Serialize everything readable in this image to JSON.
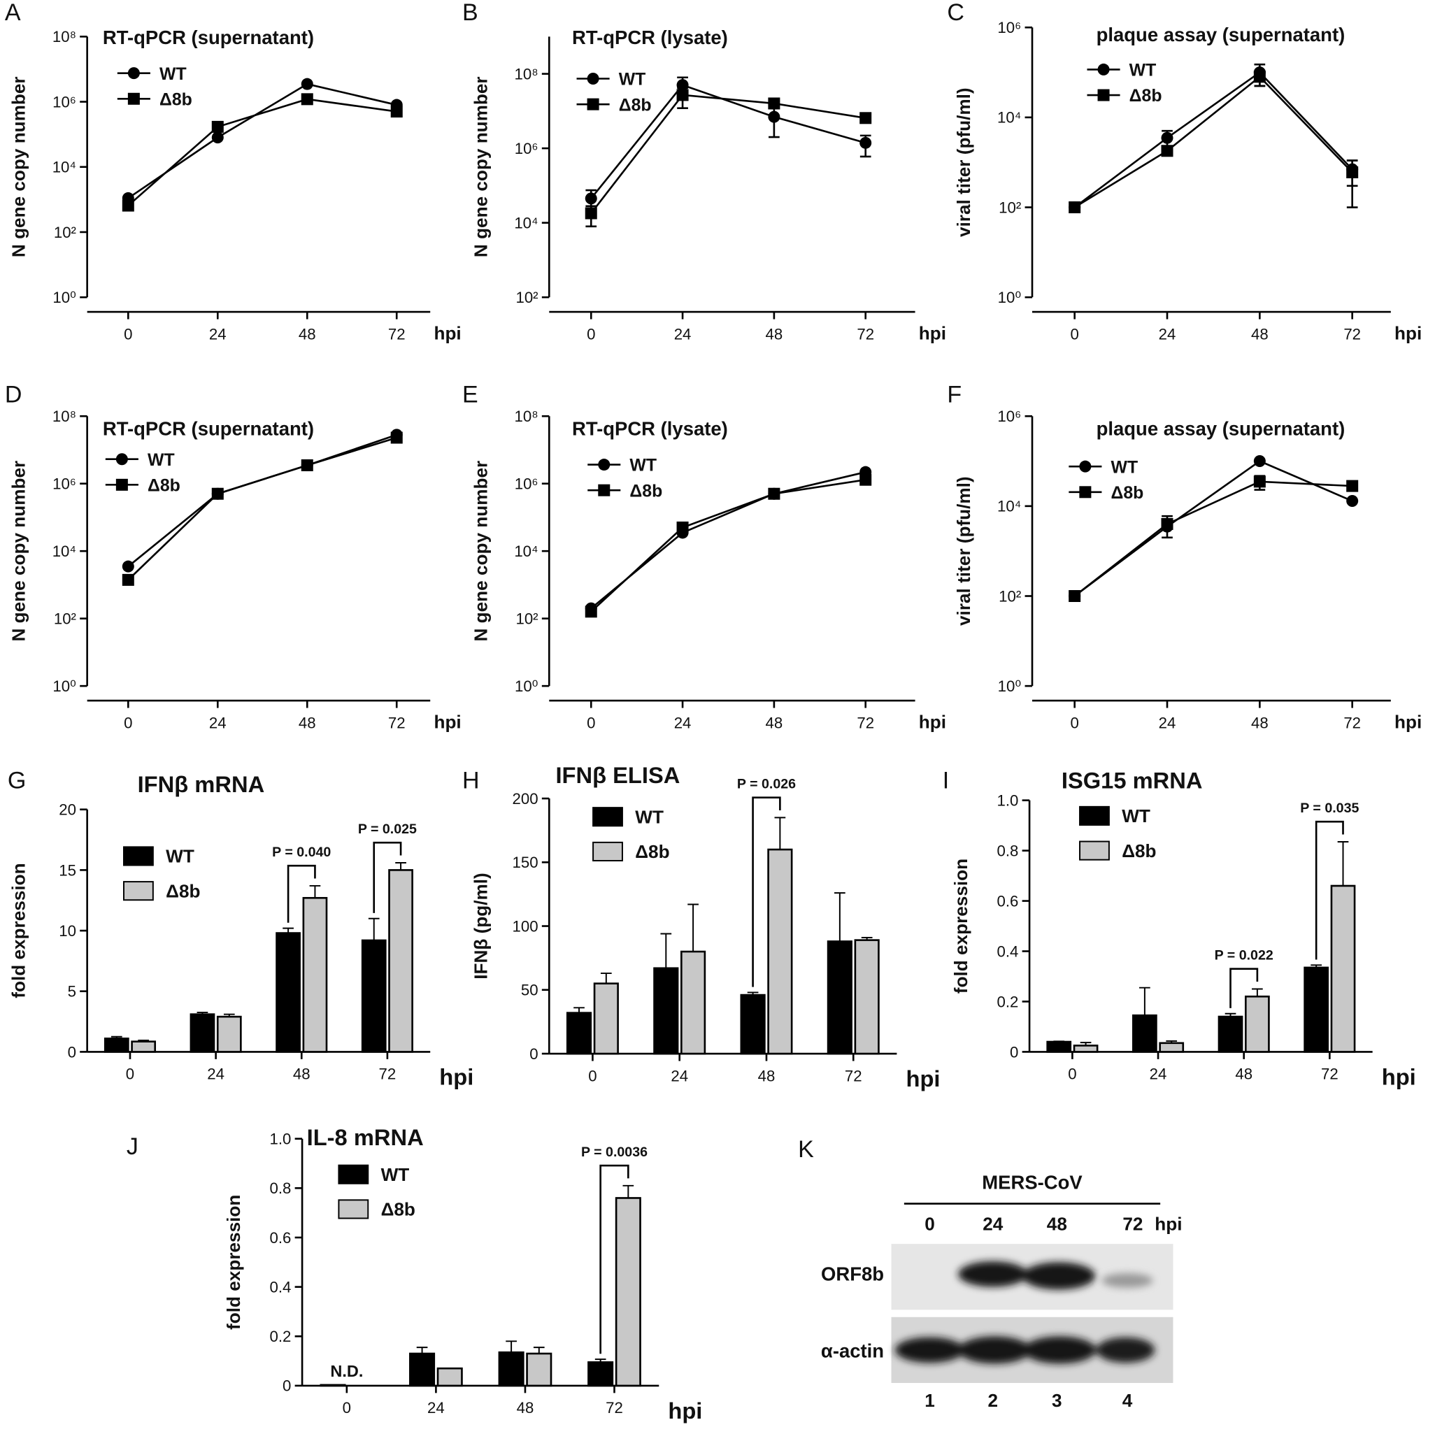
{
  "chart_data": [
    {
      "panel": "A",
      "type": "line",
      "title": "RT-qPCR (supernatant)",
      "xlabel": "hpi",
      "ylabel": "N gene copy number",
      "log_y": true,
      "x": [
        0,
        24,
        48,
        72
      ],
      "xlim": [
        -11,
        81
      ],
      "xticks": [
        0,
        24,
        48,
        72
      ],
      "ylim": [
        1,
        100000000
      ],
      "yticks": [
        {
          "value": 1,
          "label": "10⁰"
        },
        {
          "value": 100,
          "label": "10²"
        },
        {
          "value": 10000,
          "label": "10⁴"
        },
        {
          "value": 1000000,
          "label": "10⁶"
        },
        {
          "value": 100000000,
          "label": "10⁸"
        }
      ],
      "series": [
        {
          "name": "WT",
          "color": "#000000",
          "marker": "circle",
          "values": [
            1100,
            80000,
            3500000,
            800000
          ]
        },
        {
          "name": "Δ8b",
          "color": "#000000",
          "marker": "square",
          "values": [
            650,
            170000,
            1200000,
            500000
          ]
        }
      ]
    },
    {
      "panel": "B",
      "type": "line",
      "title": "RT-qPCR (lysate)",
      "xlabel": "hpi",
      "ylabel": "N gene copy number",
      "log_y": true,
      "x": [
        0,
        24,
        48,
        72
      ],
      "xlim": [
        -11,
        85
      ],
      "xticks": [
        0,
        24,
        48,
        72
      ],
      "ylim": [
        100,
        1000000000
      ],
      "yticks": [
        {
          "value": 100,
          "label": "10²"
        },
        {
          "value": 10000,
          "label": "10⁴"
        },
        {
          "value": 1000000,
          "label": "10⁶"
        },
        {
          "value": 100000000,
          "label": "10⁸"
        }
      ],
      "series": [
        {
          "name": "WT",
          "color": "#000000",
          "marker": "circle",
          "values": [
            45000,
            50000000,
            7000000,
            1400000
          ],
          "errors": [
            30000,
            30000000,
            5000000,
            800000
          ]
        },
        {
          "name": "Δ8b",
          "color": "#000000",
          "marker": "square",
          "values": [
            18000,
            27000000,
            16000000,
            6500000
          ],
          "errors": [
            10000,
            15000000,
            null,
            null
          ]
        }
      ]
    },
    {
      "panel": "C",
      "type": "line",
      "title": "plaque assay (supernatant)",
      "xlabel": "hpi",
      "ylabel": "viral titer (pfu/ml)",
      "log_y": true,
      "x": [
        0,
        24,
        48,
        72
      ],
      "xlim": [
        -11,
        82
      ],
      "xticks": [
        0,
        24,
        48,
        72
      ],
      "ylim": [
        1,
        1000000
      ],
      "yticks": [
        {
          "value": 1,
          "label": "10⁰"
        },
        {
          "value": 100,
          "label": "10²"
        },
        {
          "value": 10000,
          "label": "10⁴"
        },
        {
          "value": 1000000,
          "label": "10⁶"
        }
      ],
      "series": [
        {
          "name": "WT",
          "color": "#000000",
          "marker": "circle",
          "values": [
            100,
            3500,
            100000,
            700
          ],
          "errors": [
            null,
            1500,
            50000,
            400
          ]
        },
        {
          "name": "Δ8b",
          "color": "#000000",
          "marker": "square",
          "values": [
            100,
            1800,
            80000,
            600
          ],
          "errors": [
            null,
            null,
            30000,
            500
          ]
        }
      ]
    },
    {
      "panel": "D",
      "type": "line",
      "title": "RT-qPCR (supernatant)",
      "xlabel": "hpi",
      "ylabel": "N gene copy number",
      "log_y": true,
      "x": [
        0,
        24,
        48,
        72
      ],
      "xlim": [
        -11,
        81
      ],
      "xticks": [
        0,
        24,
        48,
        72
      ],
      "ylim": [
        1,
        100000000
      ],
      "yticks": [
        {
          "value": 1,
          "label": "10⁰"
        },
        {
          "value": 100,
          "label": "10²"
        },
        {
          "value": 10000,
          "label": "10⁴"
        },
        {
          "value": 1000000,
          "label": "10⁶"
        },
        {
          "value": 100000000,
          "label": "10⁸"
        }
      ],
      "series": [
        {
          "name": "WT",
          "color": "#000000",
          "marker": "circle",
          "values": [
            3500,
            500000,
            3500000,
            28000000
          ]
        },
        {
          "name": "Δ8b",
          "color": "#000000",
          "marker": "square",
          "values": [
            1400,
            500000,
            3500000,
            23000000
          ]
        }
      ]
    },
    {
      "panel": "E",
      "type": "line",
      "title": "RT-qPCR (lysate)",
      "xlabel": "hpi",
      "ylabel": "N gene copy number",
      "log_y": true,
      "x": [
        0,
        24,
        48,
        72
      ],
      "xlim": [
        -11,
        85
      ],
      "xticks": [
        0,
        24,
        48,
        72
      ],
      "ylim": [
        1,
        100000000
      ],
      "yticks": [
        {
          "value": 1,
          "label": "10⁰"
        },
        {
          "value": 100,
          "label": "10²"
        },
        {
          "value": 10000,
          "label": "10⁴"
        },
        {
          "value": 1000000,
          "label": "10⁶"
        },
        {
          "value": 100000000,
          "label": "10⁸"
        }
      ],
      "series": [
        {
          "name": "WT",
          "color": "#000000",
          "marker": "circle",
          "values": [
            200,
            35000,
            500000,
            2200000
          ]
        },
        {
          "name": "Δ8b",
          "color": "#000000",
          "marker": "square",
          "values": [
            160,
            50000,
            500000,
            1300000
          ]
        }
      ]
    },
    {
      "panel": "F",
      "type": "line",
      "title": "plaque assay (supernatant)",
      "xlabel": "hpi",
      "ylabel": "viral titer (pfu/ml)",
      "log_y": true,
      "x": [
        0,
        24,
        48,
        72
      ],
      "xlim": [
        -11,
        82
      ],
      "xticks": [
        0,
        24,
        48,
        72
      ],
      "ylim": [
        1,
        1000000
      ],
      "yticks": [
        {
          "value": 1,
          "label": "10⁰"
        },
        {
          "value": 100,
          "label": "10²"
        },
        {
          "value": 10000,
          "label": "10⁴"
        },
        {
          "value": 1000000,
          "label": "10⁶"
        }
      ],
      "series": [
        {
          "name": "WT",
          "color": "#000000",
          "marker": "circle",
          "values": [
            100,
            3500,
            100000,
            13000
          ]
        },
        {
          "name": "Δ8b",
          "color": "#000000",
          "marker": "square",
          "values": [
            100,
            4000,
            35000,
            28000
          ],
          "errors": [
            null,
            2000,
            12000,
            null
          ]
        }
      ]
    },
    {
      "panel": "G",
      "type": "bar",
      "title": "IFNβ mRNA",
      "xlabel": "hpi",
      "ylabel": "fold expression",
      "categories": [
        "0",
        "24",
        "48",
        "72"
      ],
      "ylim": [
        0,
        20
      ],
      "yticks": [
        0,
        5,
        10,
        15,
        20
      ],
      "series": [
        {
          "name": "WT",
          "color": "#000000",
          "values": [
            1.1,
            3.1,
            9.8,
            9.2
          ],
          "errors": [
            0.15,
            0.15,
            0.4,
            1.8
          ]
        },
        {
          "name": "Δ8b",
          "color": "#c8c8c8",
          "values": [
            0.85,
            2.9,
            12.7,
            15.0
          ],
          "errors": [
            0.1,
            0.2,
            1.0,
            0.6
          ]
        }
      ],
      "annotations": [
        {
          "text": "P = 0.040",
          "x": "48"
        },
        {
          "text": "P = 0.025",
          "x": "72"
        }
      ]
    },
    {
      "panel": "H",
      "type": "bar",
      "title": "IFNβ ELISA",
      "xlabel": "hpi",
      "ylabel": "IFNβ (pg/ml)",
      "categories": [
        "0",
        "24",
        "48",
        "72"
      ],
      "ylim": [
        0,
        200
      ],
      "yticks": [
        0,
        50,
        100,
        150,
        200
      ],
      "series": [
        {
          "name": "WT",
          "color": "#000000",
          "values": [
            32,
            67,
            46,
            88
          ],
          "errors": [
            4,
            27,
            2,
            38
          ]
        },
        {
          "name": "Δ8b",
          "color": "#c8c8c8",
          "values": [
            55,
            80,
            160,
            89
          ],
          "errors": [
            8,
            37,
            25,
            2
          ]
        }
      ],
      "annotations": [
        {
          "text": "P = 0.026",
          "x": "48"
        }
      ]
    },
    {
      "panel": "I",
      "type": "bar",
      "title": "ISG15 mRNA",
      "xlabel": "hpi",
      "ylabel": "fold expression",
      "categories": [
        "0",
        "24",
        "48",
        "72"
      ],
      "ylim": [
        0,
        1
      ],
      "yticks": [
        0,
        0.2,
        0.4,
        0.6,
        0.8,
        {
          "value": 1,
          "label": "1.0"
        }
      ],
      "series": [
        {
          "name": "WT",
          "color": "#000000",
          "values": [
            0.04,
            0.145,
            0.14,
            0.335
          ],
          "errors": [
            0.002,
            0.11,
            0.012,
            0.01
          ]
        },
        {
          "name": "Δ8b",
          "color": "#c8c8c8",
          "values": [
            0.025,
            0.035,
            0.22,
            0.66
          ],
          "errors": [
            0.012,
            0.008,
            0.03,
            0.175
          ]
        }
      ],
      "annotations": [
        {
          "text": "P = 0.022",
          "x": "48"
        },
        {
          "text": "P = 0.035",
          "x": "72"
        }
      ]
    },
    {
      "panel": "J",
      "type": "bar",
      "title": "IL-8 mRNA",
      "xlabel": "hpi",
      "ylabel": "fold expression",
      "categories": [
        "0",
        "24",
        "48",
        "72"
      ],
      "ylim": [
        0,
        1
      ],
      "yticks": [
        0,
        0.2,
        0.4,
        0.6,
        0.8,
        {
          "value": 1,
          "label": "1.0"
        }
      ],
      "series": [
        {
          "name": "WT",
          "color": "#000000",
          "values": [
            0.003,
            0.13,
            0.135,
            0.095
          ],
          "errors": [
            null,
            0.025,
            0.045,
            0.012
          ]
        },
        {
          "name": "Δ8b",
          "color": "#c8c8c8",
          "values": [
            null,
            0.07,
            0.13,
            0.76
          ],
          "errors": [
            null,
            null,
            0.025,
            0.05
          ]
        }
      ],
      "annotations": [
        {
          "text": "N.D.",
          "x": "0"
        },
        {
          "text": "P = 0.0036",
          "x": "72"
        }
      ]
    }
  ],
  "blot": {
    "panel": "K",
    "title": "MERS-CoV",
    "lanes": [
      "0",
      "24",
      "48",
      "72"
    ],
    "lane_unit": "hpi",
    "rows": [
      "ORF8b",
      "α-actin"
    ],
    "lane_numbers": [
      "1",
      "2",
      "3",
      "4"
    ]
  }
}
